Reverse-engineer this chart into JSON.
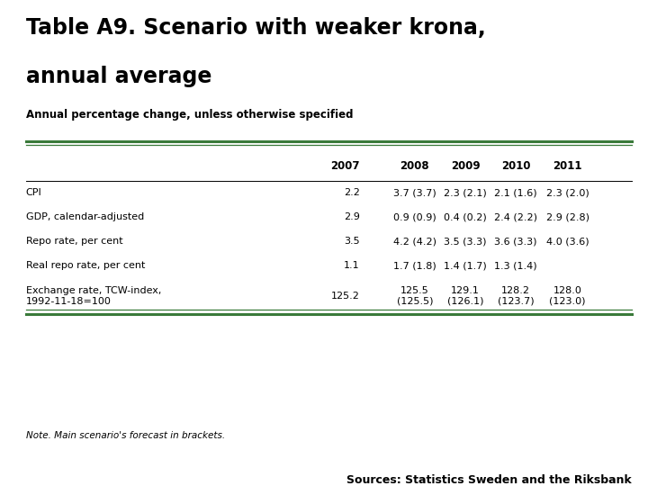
{
  "title_line1": "Table A9. Scenario with weaker krona,",
  "title_line2": "annual average",
  "subtitle": "Annual percentage change, unless otherwise specified",
  "columns": [
    "",
    "2007",
    "2008",
    "2009",
    "2010",
    "2011"
  ],
  "rows": [
    [
      "CPI",
      "2.2",
      "3.7 (3.7)",
      "2.3 (2.1)",
      "2.1 (1.6)",
      "2.3 (2.0)"
    ],
    [
      "GDP, calendar-adjusted",
      "2.9",
      "0.9 (0.9)",
      "0.4 (0.2)",
      "2.4 (2.2)",
      "2.9 (2.8)"
    ],
    [
      "Repo rate, per cent",
      "3.5",
      "4.2 (4.2)",
      "3.5 (3.3)",
      "3.6 (3.3)",
      "4.0 (3.6)"
    ],
    [
      "Real repo rate, per cent",
      "1.1",
      "1.7 (1.8)",
      "1.4 (1.7)",
      "1.3 (1.4)",
      ""
    ],
    [
      "Exchange rate, TCW-index,\n1992-11-18=100",
      "125.2",
      "125.5\n(125.5)",
      "129.1\n(126.1)",
      "128.2\n(123.7)",
      "128.0\n(123.0)"
    ]
  ],
  "note": "Note. Main scenario's forecast in brackets.",
  "source": "Sources: Statistics Sweden and the Riksbank",
  "green_color": "#3a7a3a",
  "blue_color": "#1a3a6b",
  "title_color": "#000000",
  "bg_color": "#ffffff"
}
